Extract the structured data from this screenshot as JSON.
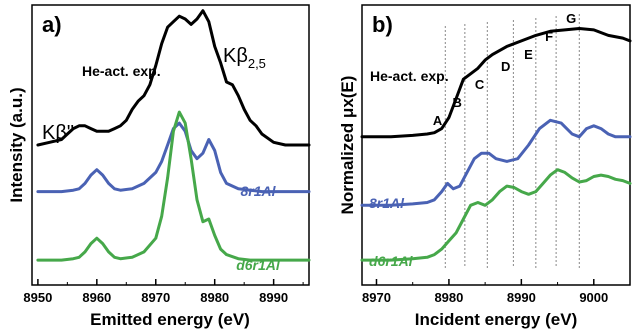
{
  "colors": {
    "black": "#000000",
    "blue": "#4a62b4",
    "green": "#46a84a",
    "grid": "#888888"
  },
  "chart_data": [
    {
      "panel_label": "a)",
      "type": "line",
      "xlabel": "Emitted energy (eV)",
      "ylabel": "Intensity (a.u.)",
      "xlim": [
        8949,
        8996
      ],
      "ylim": [
        0,
        1
      ],
      "x_ticks": [
        8950,
        8960,
        8970,
        8980,
        8990
      ],
      "grid": false,
      "annotations": [
        {
          "text": "He-act. exp.",
          "x": 8961,
          "y": 0.8
        },
        {
          "text": "Kβ\"",
          "x": 8953,
          "y": 0.57
        },
        {
          "text": "Kβ",
          "sub": "2,5",
          "x": 8981,
          "y": 0.86
        }
      ],
      "series": [
        {
          "name": "He-act. exp.",
          "color": "#000000",
          "x": [
            8950,
            8952,
            8954,
            8955,
            8956,
            8957,
            8958,
            8959,
            8960,
            8961,
            8962,
            8963,
            8964,
            8965,
            8966,
            8967,
            8968,
            8969,
            8970,
            8971,
            8972,
            8973,
            8974,
            8975,
            8976,
            8977,
            8978,
            8979,
            8980,
            8981,
            8982,
            8983,
            8984,
            8985,
            8986,
            8987,
            8988,
            8990,
            8992,
            8994,
            8996
          ],
          "y": [
            0.5,
            0.51,
            0.52,
            0.54,
            0.56,
            0.57,
            0.57,
            0.56,
            0.55,
            0.55,
            0.55,
            0.56,
            0.57,
            0.59,
            0.63,
            0.66,
            0.68,
            0.72,
            0.79,
            0.87,
            0.93,
            0.95,
            0.97,
            0.96,
            0.94,
            0.96,
            0.99,
            0.95,
            0.86,
            0.8,
            0.73,
            0.72,
            0.68,
            0.63,
            0.59,
            0.57,
            0.54,
            0.51,
            0.5,
            0.5,
            0.5
          ]
        },
        {
          "name": "8r1Al",
          "color": "#4a62b4",
          "x": [
            8950,
            8954,
            8956,
            8957,
            8958,
            8959,
            8960,
            8961,
            8962,
            8963,
            8964,
            8966,
            8968,
            8970,
            8971,
            8972,
            8973,
            8974,
            8975,
            8976,
            8977,
            8978,
            8979,
            8980,
            8981,
            8982,
            8984,
            8986,
            8988,
            8990,
            8992,
            8996
          ],
          "y": [
            0.33,
            0.33,
            0.335,
            0.34,
            0.36,
            0.39,
            0.41,
            0.39,
            0.36,
            0.34,
            0.335,
            0.34,
            0.36,
            0.4,
            0.44,
            0.5,
            0.56,
            0.58,
            0.55,
            0.48,
            0.45,
            0.47,
            0.52,
            0.48,
            0.4,
            0.36,
            0.34,
            0.335,
            0.33,
            0.33,
            0.33,
            0.33
          ]
        },
        {
          "name": "d6r1Al",
          "color": "#46a84a",
          "x": [
            8950,
            8954,
            8956,
            8957,
            8958,
            8959,
            8960,
            8961,
            8962,
            8963,
            8964,
            8966,
            8968,
            8970,
            8971,
            8972,
            8973,
            8974,
            8975,
            8976,
            8977,
            8978,
            8979,
            8980,
            8981,
            8982,
            8984,
            8986,
            8988,
            8990,
            8992,
            8996
          ],
          "y": [
            0.08,
            0.08,
            0.085,
            0.09,
            0.11,
            0.14,
            0.16,
            0.14,
            0.11,
            0.09,
            0.085,
            0.09,
            0.11,
            0.16,
            0.24,
            0.38,
            0.55,
            0.62,
            0.58,
            0.45,
            0.3,
            0.22,
            0.23,
            0.17,
            0.12,
            0.1,
            0.085,
            0.08,
            0.08,
            0.08,
            0.08,
            0.08
          ]
        }
      ]
    },
    {
      "panel_label": "b)",
      "type": "line",
      "xlabel": "Incident energy (eV)",
      "ylabel": "Normalized μx(E)",
      "xlim": [
        8968,
        9005
      ],
      "ylim": [
        0,
        1
      ],
      "x_ticks": [
        8970,
        8980,
        8990,
        9000
      ],
      "grid": false,
      "markers": [
        {
          "label": "A",
          "x": 8979.5
        },
        {
          "label": "B",
          "x": 8982.2
        },
        {
          "label": "C",
          "x": 8985.3
        },
        {
          "label": "D",
          "x": 8988.9
        },
        {
          "label": "E",
          "x": 8992.0
        },
        {
          "label": "F",
          "x": 8994.8
        },
        {
          "label": "G",
          "x": 8998.0
        }
      ],
      "annotations": [
        {
          "text": "He-act. exp.",
          "x": 8971,
          "y": 0.75
        }
      ],
      "series": [
        {
          "name": "He-act. exp.",
          "color": "#000000",
          "x": [
            8968,
            8972,
            8975,
            8977,
            8978,
            8979,
            8980,
            8981,
            8982,
            8983,
            8984,
            8985,
            8986,
            8988,
            8990,
            8992,
            8994,
            8996,
            8998,
            9000,
            9002,
            9004,
            9005
          ],
          "y": [
            0.53,
            0.53,
            0.535,
            0.54,
            0.545,
            0.56,
            0.6,
            0.67,
            0.74,
            0.76,
            0.78,
            0.81,
            0.83,
            0.86,
            0.88,
            0.9,
            0.915,
            0.92,
            0.925,
            0.92,
            0.9,
            0.89,
            0.88
          ]
        },
        {
          "name": "8r1Al",
          "color": "#4a62b4",
          "x": [
            8968,
            8972,
            8975,
            8977,
            8978,
            8979,
            8979.8,
            8980.6,
            8981.5,
            8982.5,
            8983.5,
            8984.5,
            8985.5,
            8986.5,
            8988,
            8989.5,
            8991,
            8992.5,
            8994,
            8995.5,
            8997,
            8998,
            8999,
            9000,
            9001,
            9002,
            9003,
            9004,
            9005
          ],
          "y": [
            0.28,
            0.28,
            0.285,
            0.29,
            0.3,
            0.33,
            0.36,
            0.34,
            0.35,
            0.4,
            0.45,
            0.47,
            0.47,
            0.45,
            0.44,
            0.45,
            0.5,
            0.56,
            0.59,
            0.58,
            0.54,
            0.53,
            0.56,
            0.57,
            0.56,
            0.54,
            0.53,
            0.53,
            0.53
          ]
        },
        {
          "name": "d6r1Al",
          "color": "#46a84a",
          "x": [
            8968,
            8972,
            8975,
            8977,
            8978,
            8979,
            8980,
            8981,
            8982,
            8983,
            8984,
            8985,
            8986,
            8987,
            8988,
            8989,
            8990,
            8991,
            8992,
            8993,
            8994,
            8995,
            8996,
            8997,
            8998,
            8999,
            9000,
            9001,
            9002,
            9003,
            9004,
            9005
          ],
          "y": [
            0.08,
            0.08,
            0.085,
            0.09,
            0.1,
            0.12,
            0.15,
            0.18,
            0.23,
            0.28,
            0.29,
            0.28,
            0.3,
            0.33,
            0.35,
            0.345,
            0.33,
            0.32,
            0.33,
            0.36,
            0.39,
            0.41,
            0.4,
            0.38,
            0.365,
            0.37,
            0.385,
            0.39,
            0.385,
            0.375,
            0.37,
            0.36
          ]
        }
      ]
    }
  ]
}
